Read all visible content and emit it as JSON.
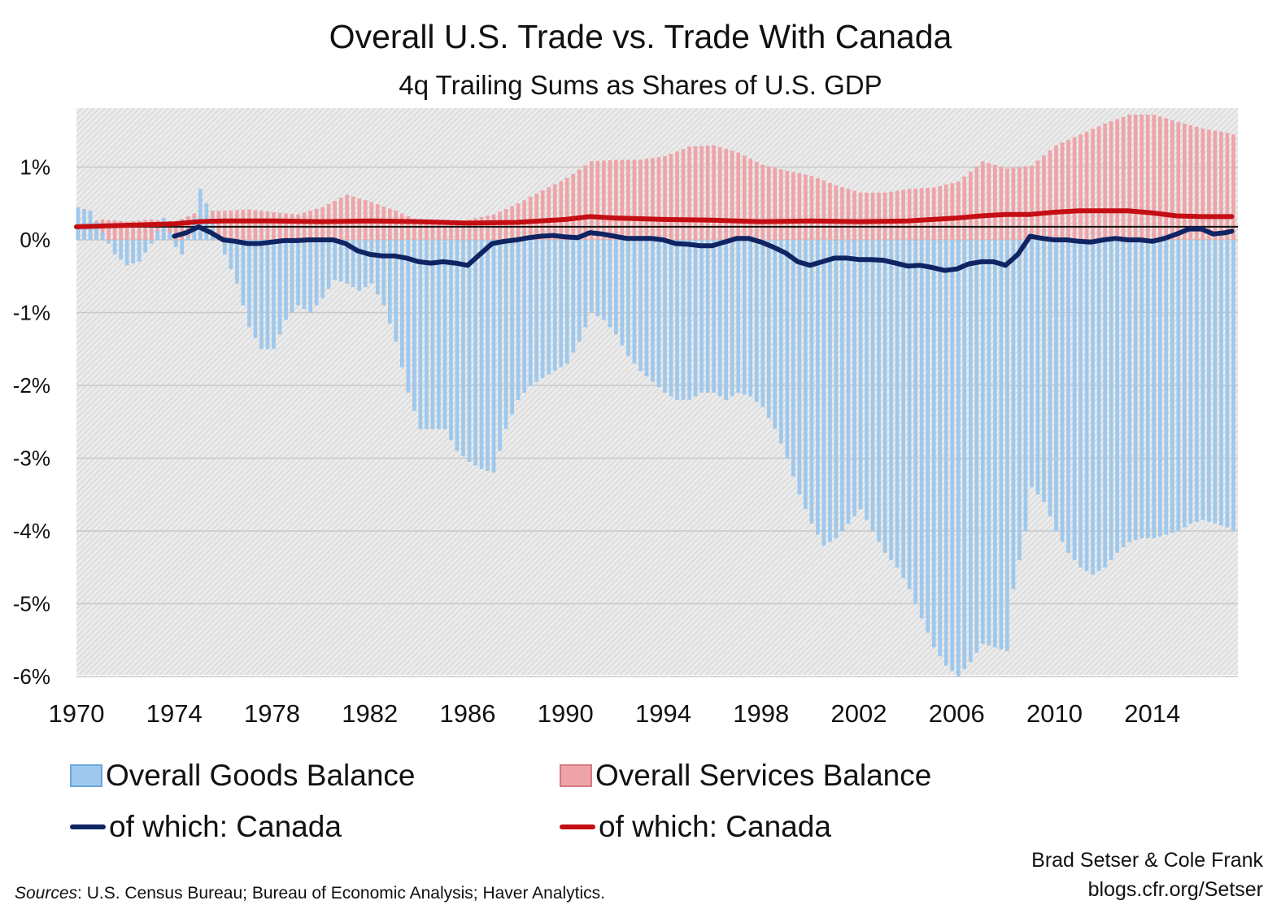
{
  "title": "Overall U.S. Trade vs. Trade With Canada",
  "subtitle": "4q Trailing Sums as Shares of U.S. GDP",
  "credit": {
    "authors": "Brad Setser & Cole Frank",
    "url": "blogs.cfr.org/Setser"
  },
  "sources": {
    "label": "Sources",
    "text": ": U.S. Census Bureau; Bureau of Economic Analysis; Haver Analytics."
  },
  "legend": {
    "goods": "Overall Goods Balance",
    "services": "Overall Services Balance",
    "goods_canada": "of which: Canada",
    "services_canada": "of which: Canada"
  },
  "colors": {
    "goods": "#9ec8ec",
    "services": "#eea4a8",
    "goods_canada": "#0f2463",
    "services_canada": "#c40e14"
  },
  "chart_data": {
    "type": "bar",
    "frequency": "quarterly",
    "unit": "% of U.S. GDP",
    "xlim": [
      1970,
      2017.5
    ],
    "ylim": [
      -6,
      1.8
    ],
    "y_ticks": [
      1,
      0,
      -1,
      -2,
      -3,
      -4,
      -5,
      -6
    ],
    "y_tick_labels": [
      "1%",
      "0%",
      "-1%",
      "-2%",
      "-3%",
      "-4%",
      "-5%",
      "-6%"
    ],
    "x_ticks": [
      1970,
      1974,
      1978,
      1982,
      1986,
      1990,
      1994,
      1998,
      2002,
      2006,
      2010,
      2014
    ],
    "x_tick_labels": [
      "1970",
      "1974",
      "1978",
      "1982",
      "1986",
      "1990",
      "1994",
      "1998",
      "2002",
      "2006",
      "2010",
      "2014"
    ],
    "grid": true,
    "legend_position": "bottom",
    "series": [
      {
        "name": "Overall Goods Balance",
        "type": "bar",
        "points": [
          [
            1970,
            0.45
          ],
          [
            1970.5,
            0.4
          ],
          [
            1971,
            0.1
          ],
          [
            1971.5,
            -0.2
          ],
          [
            1972,
            -0.35
          ],
          [
            1972.5,
            -0.3
          ],
          [
            1973,
            -0.05
          ],
          [
            1973.5,
            0.3
          ],
          [
            1974,
            -0.1
          ],
          [
            1974.25,
            -0.2
          ],
          [
            1974.75,
            0.3
          ],
          [
            1975,
            0.7
          ],
          [
            1975.25,
            0.5
          ],
          [
            1975.5,
            0.3
          ],
          [
            1976,
            -0.2
          ],
          [
            1976.5,
            -0.6
          ],
          [
            1977,
            -1.2
          ],
          [
            1977.5,
            -1.5
          ],
          [
            1978,
            -1.5
          ],
          [
            1978.5,
            -1.1
          ],
          [
            1979,
            -0.9
          ],
          [
            1979.5,
            -1.0
          ],
          [
            1980,
            -0.8
          ],
          [
            1980.5,
            -0.55
          ],
          [
            1981,
            -0.6
          ],
          [
            1981.5,
            -0.7
          ],
          [
            1982,
            -0.6
          ],
          [
            1982.5,
            -0.9
          ],
          [
            1983,
            -1.4
          ],
          [
            1983.5,
            -2.1
          ],
          [
            1984,
            -2.6
          ],
          [
            1984.5,
            -2.6
          ],
          [
            1985,
            -2.6
          ],
          [
            1985.5,
            -2.9
          ],
          [
            1986,
            -3.05
          ],
          [
            1986.5,
            -3.15
          ],
          [
            1987,
            -3.2
          ],
          [
            1987.5,
            -2.6
          ],
          [
            1988,
            -2.2
          ],
          [
            1988.5,
            -2.0
          ],
          [
            1989,
            -1.9
          ],
          [
            1989.5,
            -1.8
          ],
          [
            1990,
            -1.7
          ],
          [
            1990.5,
            -1.4
          ],
          [
            1991,
            -1.0
          ],
          [
            1991.5,
            -1.1
          ],
          [
            1992,
            -1.3
          ],
          [
            1992.5,
            -1.6
          ],
          [
            1993,
            -1.8
          ],
          [
            1993.5,
            -1.95
          ],
          [
            1994,
            -2.1
          ],
          [
            1994.5,
            -2.2
          ],
          [
            1995,
            -2.2
          ],
          [
            1995.5,
            -2.1
          ],
          [
            1996,
            -2.1
          ],
          [
            1996.5,
            -2.2
          ],
          [
            1997,
            -2.1
          ],
          [
            1997.5,
            -2.15
          ],
          [
            1998,
            -2.3
          ],
          [
            1998.5,
            -2.6
          ],
          [
            1999,
            -3.0
          ],
          [
            1999.5,
            -3.5
          ],
          [
            2000,
            -3.9
          ],
          [
            2000.5,
            -4.2
          ],
          [
            2001,
            -4.1
          ],
          [
            2001.5,
            -3.9
          ],
          [
            2002,
            -3.7
          ],
          [
            2002.5,
            -4.0
          ],
          [
            2003,
            -4.3
          ],
          [
            2003.5,
            -4.5
          ],
          [
            2004,
            -4.8
          ],
          [
            2004.5,
            -5.2
          ],
          [
            2005,
            -5.6
          ],
          [
            2005.5,
            -5.85
          ],
          [
            2006,
            -6.0
          ],
          [
            2006.5,
            -5.8
          ],
          [
            2007,
            -5.55
          ],
          [
            2007.5,
            -5.6
          ],
          [
            2008,
            -5.65
          ],
          [
            2008.25,
            -4.8
          ],
          [
            2008.75,
            -4.0
          ],
          [
            2009,
            -3.4
          ],
          [
            2009.5,
            -3.6
          ],
          [
            2010,
            -4.0
          ],
          [
            2010.5,
            -4.3
          ],
          [
            2011,
            -4.5
          ],
          [
            2011.5,
            -4.6
          ],
          [
            2012,
            -4.5
          ],
          [
            2012.5,
            -4.3
          ],
          [
            2013,
            -4.15
          ],
          [
            2013.5,
            -4.1
          ],
          [
            2014,
            -4.1
          ],
          [
            2014.5,
            -4.05
          ],
          [
            2015,
            -4.0
          ],
          [
            2015.5,
            -3.9
          ],
          [
            2016,
            -3.85
          ],
          [
            2016.5,
            -3.9
          ],
          [
            2017,
            -3.95
          ],
          [
            2017.25,
            -4.0
          ]
        ]
      },
      {
        "name": "Overall Services Balance",
        "type": "bar",
        "points": [
          [
            1970,
            0.22
          ],
          [
            1971,
            0.28
          ],
          [
            1972,
            0.25
          ],
          [
            1973,
            0.28
          ],
          [
            1974,
            0.25
          ],
          [
            1975,
            0.4
          ],
          [
            1976,
            0.4
          ],
          [
            1977,
            0.42
          ],
          [
            1978,
            0.38
          ],
          [
            1979,
            0.35
          ],
          [
            1980,
            0.45
          ],
          [
            1981,
            0.62
          ],
          [
            1982,
            0.52
          ],
          [
            1983,
            0.4
          ],
          [
            1984,
            0.25
          ],
          [
            1985,
            0.2
          ],
          [
            1986,
            0.28
          ],
          [
            1987,
            0.35
          ],
          [
            1988,
            0.5
          ],
          [
            1989,
            0.68
          ],
          [
            1990,
            0.85
          ],
          [
            1991,
            1.08
          ],
          [
            1992,
            1.1
          ],
          [
            1993,
            1.1
          ],
          [
            1994,
            1.15
          ],
          [
            1995,
            1.28
          ],
          [
            1996,
            1.3
          ],
          [
            1997,
            1.2
          ],
          [
            1998,
            1.03
          ],
          [
            1999,
            0.95
          ],
          [
            2000,
            0.88
          ],
          [
            2001,
            0.75
          ],
          [
            2002,
            0.65
          ],
          [
            2003,
            0.65
          ],
          [
            2004,
            0.7
          ],
          [
            2005,
            0.72
          ],
          [
            2006,
            0.8
          ],
          [
            2007,
            1.08
          ],
          [
            2008,
            0.98
          ],
          [
            2009,
            1.02
          ],
          [
            2010,
            1.3
          ],
          [
            2011,
            1.45
          ],
          [
            2012,
            1.6
          ],
          [
            2013,
            1.72
          ],
          [
            2014,
            1.72
          ],
          [
            2015,
            1.62
          ],
          [
            2016,
            1.53
          ],
          [
            2017,
            1.47
          ],
          [
            2017.25,
            1.45
          ]
        ]
      },
      {
        "name": "of which: Canada",
        "type": "line",
        "color_key": "goods_canada",
        "points": [
          [
            1974,
            0.05
          ],
          [
            1974.5,
            0.1
          ],
          [
            1975,
            0.18
          ],
          [
            1975.5,
            0.1
          ],
          [
            1976,
            0.0
          ],
          [
            1976.5,
            -0.02
          ],
          [
            1977,
            -0.05
          ],
          [
            1977.5,
            -0.05
          ],
          [
            1978,
            -0.03
          ],
          [
            1978.5,
            -0.01
          ],
          [
            1979,
            -0.01
          ],
          [
            1979.5,
            0.0
          ],
          [
            1980,
            0.0
          ],
          [
            1980.5,
            0.0
          ],
          [
            1981,
            -0.05
          ],
          [
            1981.5,
            -0.15
          ],
          [
            1982,
            -0.2
          ],
          [
            1982.5,
            -0.22
          ],
          [
            1983,
            -0.22
          ],
          [
            1983.5,
            -0.25
          ],
          [
            1984,
            -0.3
          ],
          [
            1984.5,
            -0.32
          ],
          [
            1985,
            -0.3
          ],
          [
            1985.5,
            -0.32
          ],
          [
            1986,
            -0.35
          ],
          [
            1986.5,
            -0.2
          ],
          [
            1987,
            -0.05
          ],
          [
            1987.5,
            -0.02
          ],
          [
            1988,
            0.0
          ],
          [
            1988.5,
            0.03
          ],
          [
            1989,
            0.05
          ],
          [
            1989.5,
            0.06
          ],
          [
            1990,
            0.04
          ],
          [
            1990.5,
            0.03
          ],
          [
            1991,
            0.1
          ],
          [
            1991.5,
            0.08
          ],
          [
            1992,
            0.05
          ],
          [
            1992.5,
            0.02
          ],
          [
            1993,
            0.02
          ],
          [
            1993.5,
            0.02
          ],
          [
            1994,
            0.0
          ],
          [
            1994.5,
            -0.05
          ],
          [
            1995,
            -0.06
          ],
          [
            1995.5,
            -0.08
          ],
          [
            1996,
            -0.08
          ],
          [
            1996.5,
            -0.03
          ],
          [
            1997,
            0.02
          ],
          [
            1997.5,
            0.02
          ],
          [
            1998,
            -0.03
          ],
          [
            1998.5,
            -0.1
          ],
          [
            1999,
            -0.18
          ],
          [
            1999.5,
            -0.3
          ],
          [
            2000,
            -0.35
          ],
          [
            2000.5,
            -0.3
          ],
          [
            2001,
            -0.25
          ],
          [
            2001.5,
            -0.25
          ],
          [
            2002,
            -0.27
          ],
          [
            2002.5,
            -0.27
          ],
          [
            2003,
            -0.28
          ],
          [
            2003.5,
            -0.32
          ],
          [
            2004,
            -0.36
          ],
          [
            2004.5,
            -0.35
          ],
          [
            2005,
            -0.38
          ],
          [
            2005.5,
            -0.42
          ],
          [
            2006,
            -0.4
          ],
          [
            2006.5,
            -0.33
          ],
          [
            2007,
            -0.3
          ],
          [
            2007.5,
            -0.3
          ],
          [
            2008,
            -0.35
          ],
          [
            2008.5,
            -0.2
          ],
          [
            2009,
            0.05
          ],
          [
            2009.5,
            0.02
          ],
          [
            2010,
            0.0
          ],
          [
            2010.5,
            0.0
          ],
          [
            2011,
            -0.02
          ],
          [
            2011.5,
            -0.03
          ],
          [
            2012,
            0.0
          ],
          [
            2012.5,
            0.02
          ],
          [
            2013,
            0.0
          ],
          [
            2013.5,
            0.0
          ],
          [
            2014,
            -0.02
          ],
          [
            2014.5,
            0.02
          ],
          [
            2015,
            0.08
          ],
          [
            2015.5,
            0.15
          ],
          [
            2016,
            0.15
          ],
          [
            2016.5,
            0.08
          ],
          [
            2017,
            0.1
          ],
          [
            2017.25,
            0.12
          ]
        ]
      },
      {
        "name": "of which: Canada",
        "type": "line",
        "color_key": "services_canada",
        "points": [
          [
            1970,
            0.18
          ],
          [
            1972,
            0.2
          ],
          [
            1974,
            0.22
          ],
          [
            1975,
            0.25
          ],
          [
            1976,
            0.26
          ],
          [
            1978,
            0.26
          ],
          [
            1980,
            0.25
          ],
          [
            1982,
            0.26
          ],
          [
            1984,
            0.25
          ],
          [
            1986,
            0.23
          ],
          [
            1988,
            0.24
          ],
          [
            1990,
            0.28
          ],
          [
            1991,
            0.32
          ],
          [
            1992,
            0.3
          ],
          [
            1994,
            0.28
          ],
          [
            1996,
            0.27
          ],
          [
            1998,
            0.25
          ],
          [
            2000,
            0.26
          ],
          [
            2002,
            0.25
          ],
          [
            2004,
            0.26
          ],
          [
            2006,
            0.3
          ],
          [
            2007,
            0.33
          ],
          [
            2008,
            0.35
          ],
          [
            2009,
            0.35
          ],
          [
            2010,
            0.38
          ],
          [
            2011,
            0.4
          ],
          [
            2012,
            0.4
          ],
          [
            2013,
            0.4
          ],
          [
            2014,
            0.37
          ],
          [
            2015,
            0.33
          ],
          [
            2016,
            0.32
          ],
          [
            2017,
            0.32
          ],
          [
            2017.25,
            0.32
          ]
        ]
      }
    ]
  }
}
